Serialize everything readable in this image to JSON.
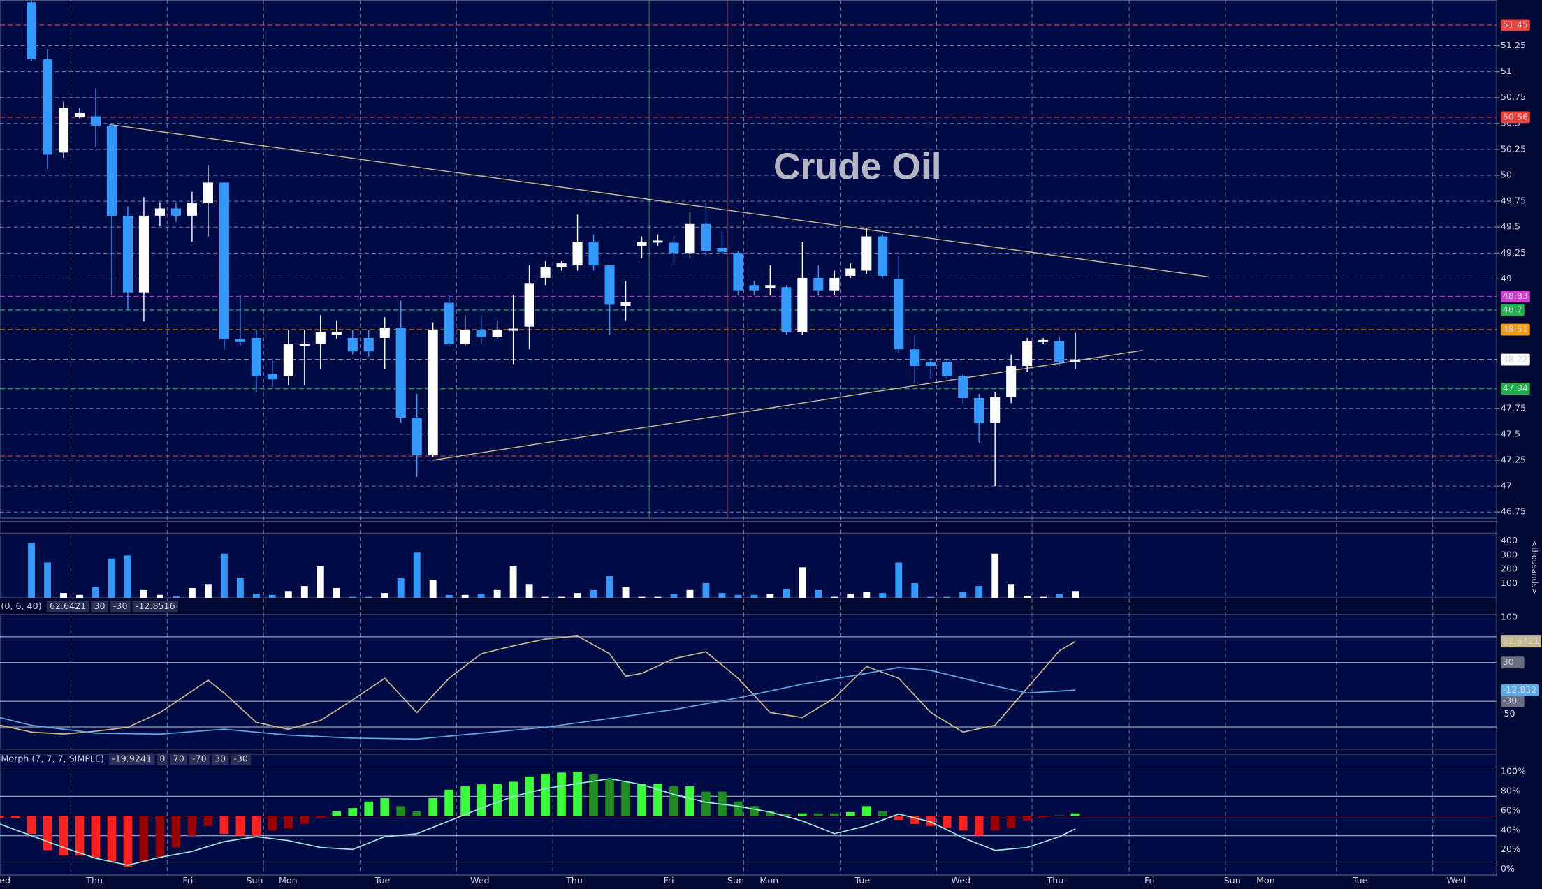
{
  "chart_data": [
    {
      "type": "candlestick",
      "title": "Crude Oil",
      "x": [
        0,
        1,
        2,
        3,
        4,
        5,
        6,
        7,
        8,
        9,
        10,
        11,
        12,
        13,
        14,
        15,
        16,
        17,
        18,
        19,
        20,
        21,
        22,
        23,
        24,
        25,
        26,
        27,
        28,
        29,
        30,
        31,
        32,
        33,
        34,
        35,
        36,
        37,
        38,
        39,
        40,
        41,
        42,
        43,
        44,
        45,
        46,
        47,
        48,
        49,
        50,
        51,
        52,
        53,
        54,
        55,
        56,
        57,
        58,
        59,
        60,
        61,
        62,
        63,
        64,
        65
      ],
      "open": [
        51.67,
        51.12,
        50.22,
        50.56,
        50.57,
        50.48,
        49.61,
        48.87,
        49.61,
        49.68,
        49.61,
        49.73,
        49.93,
        48.42,
        48.43,
        48.08,
        48.06,
        48.35,
        48.37,
        48.46,
        48.43,
        48.43,
        48.43,
        48.53,
        47.66,
        47.3,
        48.77,
        48.37,
        48.51,
        48.44,
        48.5,
        48.54,
        49.01,
        49.11,
        49.13,
        49.36,
        49.13,
        48.74,
        49.32,
        49.35,
        49.35,
        49.25,
        49.53,
        49.3,
        49.25,
        48.94,
        48.91,
        48.92,
        48.49,
        49.01,
        48.89,
        49.03,
        49.08,
        49.41,
        49.0,
        48.32,
        48.2,
        48.2,
        48.06,
        47.85,
        47.61,
        47.86,
        48.16,
        48.39,
        48.4,
        48.2
      ],
      "high": [
        51.69,
        51.22,
        50.71,
        50.65,
        50.84,
        50.5,
        49.7,
        49.79,
        49.74,
        49.74,
        49.84,
        50.1,
        49.93,
        48.84,
        48.51,
        48.23,
        48.51,
        48.51,
        48.65,
        48.6,
        48.51,
        48.51,
        48.63,
        48.79,
        47.89,
        48.58,
        48.84,
        48.65,
        48.65,
        48.6,
        48.84,
        49.13,
        49.17,
        49.17,
        49.62,
        49.43,
        49.13,
        48.98,
        49.41,
        49.43,
        49.41,
        49.65,
        49.74,
        49.46,
        49.27,
        48.98,
        49.13,
        48.94,
        49.36,
        49.13,
        49.08,
        49.15,
        49.49,
        49.43,
        49.22,
        48.46,
        48.23,
        48.23,
        48.08,
        47.89,
        47.91,
        48.27,
        48.43,
        48.43,
        48.44,
        48.48
      ],
      "low": [
        51.1,
        50.06,
        50.17,
        50.55,
        50.27,
        48.84,
        48.7,
        48.59,
        49.51,
        49.55,
        49.36,
        49.41,
        48.32,
        48.35,
        47.91,
        47.96,
        47.97,
        47.97,
        48.13,
        48.42,
        48.27,
        48.25,
        48.13,
        47.61,
        47.09,
        47.28,
        48.35,
        48.35,
        48.37,
        48.42,
        48.18,
        48.32,
        48.94,
        49.08,
        49.08,
        49.08,
        48.46,
        48.6,
        49.2,
        49.32,
        49.13,
        49.2,
        49.22,
        49.24,
        48.84,
        48.84,
        48.84,
        48.46,
        48.46,
        48.84,
        48.84,
        49.01,
        49.05,
        49.01,
        48.29,
        47.99,
        48.04,
        48.04,
        47.8,
        47.42,
        47.0,
        47.8,
        48.1,
        48.37,
        48.16,
        48.13
      ],
      "close": [
        51.12,
        50.2,
        50.65,
        50.6,
        50.48,
        49.61,
        48.87,
        49.61,
        49.68,
        49.61,
        49.73,
        49.93,
        48.42,
        48.39,
        48.06,
        48.03,
        48.37,
        48.37,
        48.49,
        48.49,
        48.3,
        48.3,
        48.53,
        47.66,
        47.3,
        48.51,
        48.37,
        48.51,
        48.44,
        48.51,
        48.52,
        48.96,
        49.11,
        49.15,
        49.36,
        49.13,
        48.75,
        48.78,
        49.36,
        49.37,
        49.25,
        49.53,
        49.27,
        49.26,
        48.89,
        48.89,
        48.94,
        48.49,
        49.01,
        48.89,
        49.01,
        49.1,
        49.41,
        49.03,
        48.32,
        48.16,
        48.16,
        48.06,
        47.85,
        47.61,
        47.86,
        48.16,
        48.4,
        48.41,
        48.2,
        48.22
      ],
      "up_color": "#ffffff",
      "down_color": "#3399ff",
      "xlim": [
        -1.96,
        91.24
      ],
      "xticks": [
        {
          "value": -1.65,
          "label": "ed"
        },
        {
          "value": 3.92,
          "label": "Thu"
        },
        {
          "value": 9.74,
          "label": "Fri"
        },
        {
          "value": 13.9,
          "label": "Sun"
        },
        {
          "value": 15.98,
          "label": "Mon"
        },
        {
          "value": 21.86,
          "label": "Tue"
        },
        {
          "value": 27.92,
          "label": "Wed"
        },
        {
          "value": 33.8,
          "label": "Thu"
        },
        {
          "value": 39.68,
          "label": "Fri"
        },
        {
          "value": 43.85,
          "label": "Sun"
        },
        {
          "value": 45.93,
          "label": "Mon"
        },
        {
          "value": 51.74,
          "label": "Tue"
        },
        {
          "value": 57.87,
          "label": "Wed"
        },
        {
          "value": 63.75,
          "label": "Thu"
        },
        {
          "value": 69.63,
          "label": "Fri"
        },
        {
          "value": 74.77,
          "label": "Sun"
        },
        {
          "value": 76.85,
          "label": "Mon"
        },
        {
          "value": 82.73,
          "label": "Tue"
        },
        {
          "value": 88.73,
          "label": "Wed"
        }
      ],
      "ylim": [
        46.69,
        51.69
      ],
      "yticks": [
        51.25,
        51,
        50.75,
        50.5,
        50.25,
        50,
        49.75,
        49.5,
        49.25,
        49,
        47.75,
        47.5,
        47.25,
        47,
        46.75
      ],
      "grid": true,
      "xgrid": [
        2.45,
        8.45,
        14.45,
        20.46,
        26.46,
        32.46,
        44.35,
        50.35,
        56.36,
        62.3,
        68.35,
        74.35,
        81.26,
        87.26
      ],
      "vlines": [
        {
          "value": 38.46,
          "color": "#1f7a3a"
        },
        {
          "value": 43.36,
          "color": "#8a1f1f"
        }
      ],
      "levels": [
        {
          "value": 51.45,
          "color": "#e8403a",
          "text_color": "#ffffff"
        },
        {
          "value": 50.56,
          "color": "#e8403a",
          "text_color": "#ffffff"
        },
        {
          "value": 48.83,
          "color": "#d040d0",
          "text_color": "#ffffff"
        },
        {
          "value": 48.7,
          "color": "#22b04a",
          "text_color": "#ffffff"
        },
        {
          "value": 48.51,
          "color": "#f39c12",
          "text_color": "#000000"
        },
        {
          "value": 48.22,
          "color": "#ffffff",
          "text_color": "#000000"
        },
        {
          "value": 47.94,
          "color": "#22b04a",
          "text_color": "#ffffff"
        }
      ],
      "extra_levels": [
        {
          "value": 47.29,
          "color": "#c0392b"
        }
      ],
      "trendlines": [
        {
          "x": [
            4.84,
            73.3
          ],
          "values": [
            50.49,
            49.02
          ],
          "color": "#c8b98a"
        },
        {
          "x": [
            24.98,
            69.2
          ],
          "values": [
            47.25,
            48.31
          ],
          "color": "#c8b98a"
        }
      ]
    },
    {
      "type": "bar",
      "x": [
        0,
        1,
        2,
        3,
        4,
        5,
        6,
        7,
        8,
        9,
        10,
        11,
        12,
        13,
        14,
        15,
        16,
        17,
        18,
        19,
        20,
        21,
        22,
        23,
        24,
        25,
        26,
        27,
        28,
        29,
        30,
        31,
        32,
        33,
        34,
        35,
        36,
        37,
        38,
        39,
        40,
        41,
        42,
        43,
        44,
        45,
        46,
        47,
        48,
        49,
        50,
        51,
        52,
        53,
        54,
        55,
        56,
        57,
        58,
        59,
        60,
        61,
        62,
        63,
        64,
        65
      ],
      "values": [
        386,
        248,
        34,
        21,
        76,
        276,
        297,
        55,
        21,
        14,
        69,
        97,
        310,
        138,
        28,
        21,
        48,
        83,
        221,
        69,
        7,
        7,
        34,
        138,
        317,
        124,
        21,
        21,
        28,
        55,
        221,
        97,
        7,
        7,
        34,
        55,
        152,
        76,
        7,
        7,
        28,
        55,
        103,
        34,
        21,
        21,
        28,
        62,
        214,
        55,
        7,
        28,
        41,
        34,
        248,
        103,
        7,
        7,
        41,
        83,
        310,
        97,
        14,
        7,
        28,
        48
      ],
      "up_color": "#ffffff",
      "down_color": "#3399ff",
      "xlim": [
        -1.96,
        91.24
      ],
      "ylim": [
        0,
        434
      ],
      "yticks": [
        100,
        200,
        300,
        400
      ],
      "y_label": "<thousands>"
    },
    {
      "type": "line",
      "header": [
        "(0, 6, 40)",
        "62.6421",
        "30",
        "-30",
        "-12.8516"
      ],
      "xlim": [
        -1.96,
        91.24
      ],
      "ylim": [
        -104.5,
        104.5
      ],
      "yticks": [
        100,
        -50
      ],
      "hlines": [
        70,
        30,
        -30,
        -70
      ],
      "level_labels": [
        30,
        -30
      ],
      "series": [
        {
          "color": "#c8b98a",
          "last_label": "62.6421",
          "x": [
            -2,
            0,
            2,
            4,
            6,
            8,
            10,
            11,
            12,
            14,
            16,
            18,
            20,
            22,
            24,
            26,
            28,
            30,
            32,
            34,
            36,
            37,
            38,
            40,
            42,
            44,
            46,
            48,
            50,
            52,
            54,
            56,
            58,
            60,
            62,
            64,
            65
          ],
          "values": [
            -67,
            -78,
            -81,
            -76.6,
            -70.5,
            -47.6,
            -14.2,
            2.6,
            -17.2,
            -62.9,
            -73.5,
            -59.8,
            -27.9,
            5.6,
            -47.6,
            5.6,
            43.7,
            55.9,
            66.5,
            71.1,
            43.7,
            8.7,
            13.2,
            36.1,
            46.7,
            5.6,
            -47.6,
            -55.3,
            -24.8,
            23.9,
            5.6,
            -47.6,
            -78,
            -67.4,
            -9.6,
            48.2,
            62.6421
          ]
        },
        {
          "color": "#5fa8e0",
          "last_label": "-12.852",
          "x": [
            -2,
            0,
            4,
            8,
            12,
            16,
            20,
            24,
            28,
            32,
            36,
            40,
            44,
            48,
            52,
            54,
            56,
            58,
            60,
            62,
            65
          ],
          "values": [
            -55.3,
            -67.4,
            -79.6,
            -81.1,
            -73.5,
            -82.6,
            -87.2,
            -88.7,
            -79.6,
            -70.5,
            -56.8,
            -43,
            -24.8,
            -3.5,
            13.2,
            22.4,
            17.8,
            5.6,
            -6.5,
            -17.2,
            -12.8516
          ]
        }
      ]
    },
    {
      "type": "combo",
      "header": [
        "Morph (7, 7, 7, SIMPLE)",
        "-19.9241",
        "0",
        "70",
        "-70",
        "30",
        "-30"
      ],
      "xlim": [
        -1.96,
        91.24
      ],
      "ylim": [
        -89.6,
        94
      ],
      "hlines": [
        70,
        30,
        0,
        -30,
        -70
      ],
      "x": [
        -2,
        -1,
        0,
        1,
        2,
        3,
        4,
        5,
        6,
        7,
        8,
        9,
        10,
        11,
        12,
        13,
        14,
        15,
        16,
        17,
        18,
        19,
        20,
        21,
        22,
        23,
        24,
        25,
        26,
        27,
        28,
        29,
        30,
        31,
        32,
        33,
        34,
        35,
        36,
        37,
        38,
        39,
        40,
        41,
        42,
        43,
        44,
        45,
        46,
        47,
        48,
        49,
        50,
        51,
        52,
        53,
        54,
        55,
        56,
        57,
        58,
        59,
        60,
        61,
        62,
        63,
        64,
        65
      ],
      "values": [
        -3,
        -3,
        -27,
        -52,
        -60,
        -60,
        -63,
        -69,
        -78,
        -70,
        -63,
        -48,
        -30,
        -15,
        -27,
        -30,
        -30,
        -22,
        -19,
        -12,
        -3,
        7,
        12,
        22,
        27,
        15,
        7,
        27,
        40,
        45,
        48,
        49,
        52,
        60,
        64,
        66,
        67,
        63,
        55,
        52,
        49,
        49,
        45,
        45,
        37,
        37,
        22,
        15,
        7,
        3,
        4,
        4,
        4,
        6,
        15,
        7,
        -6,
        -12,
        -15,
        -18,
        -22,
        -30,
        -22,
        -18,
        -7,
        -2,
        1,
        4
      ],
      "colors": [
        "#ff2020",
        "#ff2020",
        "#ff2020",
        "#ff2020",
        "#ff2020",
        "#ff2020",
        "#ff2020",
        "#ff2020",
        "#ff2020",
        "#9a0000",
        "#9a0000",
        "#9a0000",
        "#9a0000",
        "#9a0000",
        "#ff2020",
        "#ff2020",
        "#ff2020",
        "#9a0000",
        "#9a0000",
        "#9a0000",
        "#9a0000",
        "#39ff39",
        "#39ff39",
        "#39ff39",
        "#39ff39",
        "#1e8c1e",
        "#1e8c1e",
        "#39ff39",
        "#39ff39",
        "#39ff39",
        "#39ff39",
        "#39ff39",
        "#39ff39",
        "#39ff39",
        "#39ff39",
        "#39ff39",
        "#39ff39",
        "#1e8c1e",
        "#1e8c1e",
        "#1e8c1e",
        "#39ff39",
        "#39ff39",
        "#1e8c1e",
        "#39ff39",
        "#1e8c1e",
        "#1e8c1e",
        "#1e8c1e",
        "#1e8c1e",
        "#1e8c1e",
        "#1e8c1e",
        "#39ff39",
        "#1e8c1e",
        "#1e8c1e",
        "#39ff39",
        "#39ff39",
        "#1e8c1e",
        "#ff2020",
        "#ff2020",
        "#ff2020",
        "#ff2020",
        "#ff2020",
        "#ff2020",
        "#9a0000",
        "#9a0000",
        "#9a0000",
        "#9a0000",
        "#1e8c1e",
        "#39ff39"
      ],
      "y2lim": [
        -6.1,
        118.2
      ],
      "y2ticks": [
        {
          "value": 100,
          "label": "100%"
        },
        {
          "value": 80,
          "label": "80%"
        },
        {
          "value": 60,
          "label": "60%"
        },
        {
          "value": 40,
          "label": "40%"
        },
        {
          "value": 20,
          "label": "20%"
        },
        {
          "value": 0,
          "label": "0%"
        }
      ],
      "series": [
        {
          "color": "#9fe8e0",
          "axis": "y2",
          "x": [
            -2,
            0,
            2,
            4,
            6,
            8,
            10,
            12,
            14,
            16,
            18,
            20,
            22,
            24,
            26,
            28,
            30,
            32,
            34,
            36,
            38,
            40,
            42,
            44,
            46,
            48,
            50,
            52,
            54,
            56,
            58,
            60,
            62,
            64,
            65
          ],
          "values": [
            46.5,
            34.3,
            22.2,
            11.1,
            4,
            12.1,
            18.2,
            28.3,
            33.3,
            29.3,
            22.2,
            20.2,
            33.3,
            36.4,
            49.5,
            62.6,
            74.7,
            82.8,
            87.9,
            92.9,
            86.9,
            76.8,
            68.7,
            64.6,
            58.6,
            49.5,
            36.4,
            44.4,
            56.6,
            48.5,
            32.3,
            19.2,
            22.2,
            33.3,
            41.4
          ]
        }
      ]
    }
  ]
}
